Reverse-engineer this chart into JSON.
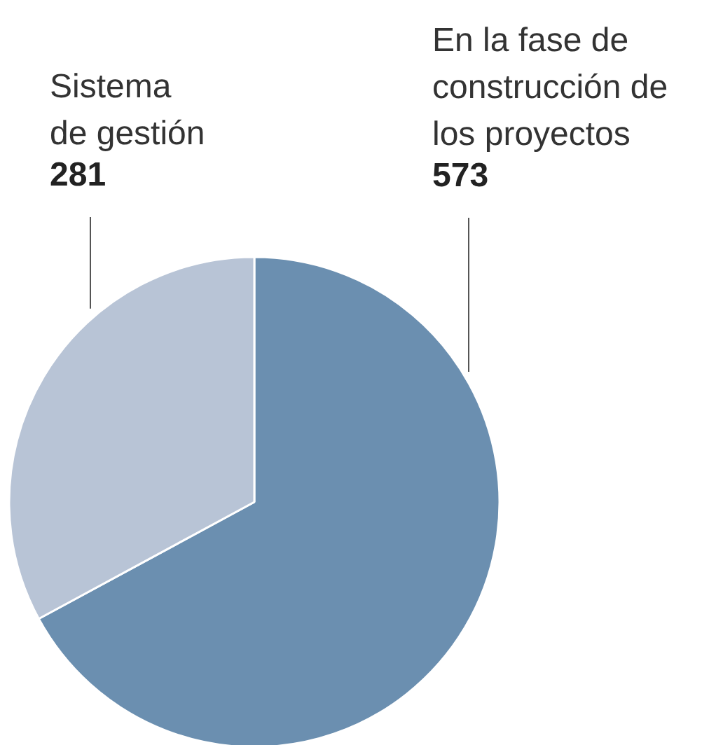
{
  "chart_data": {
    "type": "pie",
    "categories": [
      "En la fase de\nconstrucción de\nlos proyectos",
      "Sistema\nde gestión"
    ],
    "values": [
      573,
      281
    ],
    "colors": [
      "#6b8fb0",
      "#b8c4d6"
    ],
    "data_labels": true
  }
}
